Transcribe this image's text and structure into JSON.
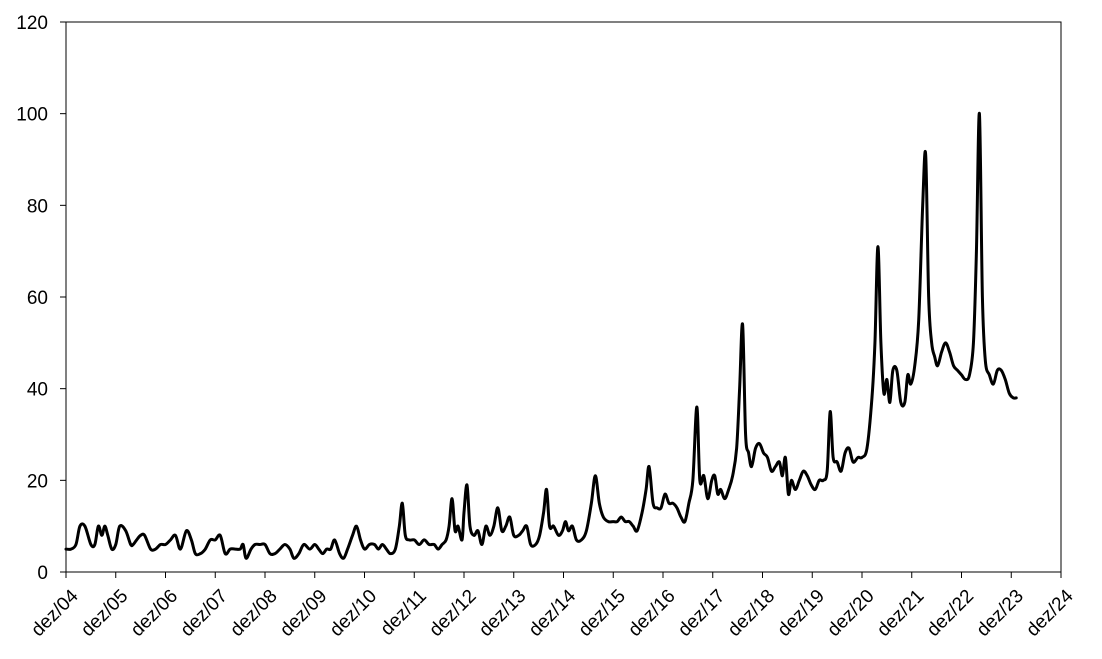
{
  "chart_data": {
    "type": "line",
    "title": "",
    "xlabel": "",
    "ylabel": "",
    "ylim": [
      0,
      120
    ],
    "y_ticks": [
      "0",
      "20",
      "40",
      "60",
      "80",
      "100",
      "120"
    ],
    "x_tick_labels": [
      "dez/04",
      "dez/05",
      "dez/06",
      "dez/07",
      "dez/08",
      "dez/09",
      "dez/10",
      "dez/11",
      "dez/12",
      "dez/13",
      "dez/14",
      "dez/15",
      "dez/16",
      "dez/17",
      "dez/18",
      "dez/19",
      "dez/20",
      "dez/21",
      "dez/22",
      "dez/23",
      "dez/24"
    ],
    "grid": false,
    "legend": "none",
    "line_color": "#000000",
    "series": [
      {
        "x_unit": "years after dez/04",
        "points": [
          [
            0.0,
            5
          ],
          [
            0.1,
            5
          ],
          [
            0.2,
            6
          ],
          [
            0.28,
            10
          ],
          [
            0.38,
            10
          ],
          [
            0.5,
            6
          ],
          [
            0.58,
            6
          ],
          [
            0.65,
            10
          ],
          [
            0.72,
            8
          ],
          [
            0.78,
            10
          ],
          [
            0.84,
            8
          ],
          [
            0.92,
            5
          ],
          [
            1.0,
            6
          ],
          [
            1.08,
            10
          ],
          [
            1.2,
            9
          ],
          [
            1.3,
            6
          ],
          [
            1.35,
            6
          ],
          [
            1.42,
            7
          ],
          [
            1.5,
            8
          ],
          [
            1.58,
            8
          ],
          [
            1.7,
            5
          ],
          [
            1.8,
            5
          ],
          [
            1.9,
            6
          ],
          [
            2.0,
            6
          ],
          [
            2.1,
            7
          ],
          [
            2.2,
            8
          ],
          [
            2.3,
            5
          ],
          [
            2.42,
            9
          ],
          [
            2.52,
            7
          ],
          [
            2.6,
            4
          ],
          [
            2.7,
            4
          ],
          [
            2.8,
            5
          ],
          [
            2.9,
            7
          ],
          [
            3.0,
            7
          ],
          [
            3.1,
            8
          ],
          [
            3.2,
            4
          ],
          [
            3.3,
            5
          ],
          [
            3.4,
            5
          ],
          [
            3.5,
            5
          ],
          [
            3.56,
            6
          ],
          [
            3.62,
            3
          ],
          [
            3.72,
            5
          ],
          [
            3.8,
            6
          ],
          [
            3.9,
            6
          ],
          [
            4.0,
            6
          ],
          [
            4.1,
            4
          ],
          [
            4.2,
            4
          ],
          [
            4.3,
            5
          ],
          [
            4.4,
            6
          ],
          [
            4.5,
            5
          ],
          [
            4.58,
            3
          ],
          [
            4.68,
            4
          ],
          [
            4.78,
            6
          ],
          [
            4.9,
            5
          ],
          [
            5.0,
            6
          ],
          [
            5.08,
            5
          ],
          [
            5.16,
            4
          ],
          [
            5.24,
            5
          ],
          [
            5.32,
            5
          ],
          [
            5.4,
            7
          ],
          [
            5.5,
            4
          ],
          [
            5.58,
            3
          ],
          [
            5.66,
            5
          ],
          [
            5.76,
            8
          ],
          [
            5.84,
            10
          ],
          [
            5.92,
            7
          ],
          [
            6.0,
            5
          ],
          [
            6.1,
            6
          ],
          [
            6.2,
            6
          ],
          [
            6.28,
            5
          ],
          [
            6.36,
            6
          ],
          [
            6.44,
            5
          ],
          [
            6.52,
            4
          ],
          [
            6.62,
            5
          ],
          [
            6.7,
            10
          ],
          [
            6.76,
            15
          ],
          [
            6.82,
            8
          ],
          [
            6.9,
            7
          ],
          [
            7.0,
            7
          ],
          [
            7.1,
            6
          ],
          [
            7.2,
            7
          ],
          [
            7.3,
            6
          ],
          [
            7.4,
            6
          ],
          [
            7.48,
            5
          ],
          [
            7.56,
            6
          ],
          [
            7.64,
            7
          ],
          [
            7.7,
            10
          ],
          [
            7.76,
            16
          ],
          [
            7.82,
            9
          ],
          [
            7.88,
            10
          ],
          [
            7.96,
            7
          ],
          [
            8.0,
            13
          ],
          [
            8.06,
            19
          ],
          [
            8.12,
            10
          ],
          [
            8.2,
            8
          ],
          [
            8.28,
            9
          ],
          [
            8.36,
            6
          ],
          [
            8.44,
            10
          ],
          [
            8.52,
            8
          ],
          [
            8.6,
            10
          ],
          [
            8.68,
            14
          ],
          [
            8.76,
            9
          ],
          [
            8.84,
            10
          ],
          [
            8.92,
            12
          ],
          [
            9.0,
            8
          ],
          [
            9.1,
            8
          ],
          [
            9.18,
            9
          ],
          [
            9.26,
            10
          ],
          [
            9.34,
            6
          ],
          [
            9.44,
            6
          ],
          [
            9.52,
            8
          ],
          [
            9.6,
            13
          ],
          [
            9.66,
            18
          ],
          [
            9.72,
            10
          ],
          [
            9.8,
            10
          ],
          [
            9.9,
            8
          ],
          [
            9.98,
            9
          ],
          [
            10.04,
            11
          ],
          [
            10.1,
            9
          ],
          [
            10.18,
            10
          ],
          [
            10.26,
            7
          ],
          [
            10.36,
            7
          ],
          [
            10.46,
            9
          ],
          [
            10.56,
            15
          ],
          [
            10.64,
            21
          ],
          [
            10.72,
            15
          ],
          [
            10.8,
            12
          ],
          [
            10.9,
            11
          ],
          [
            11.0,
            11
          ],
          [
            11.08,
            11
          ],
          [
            11.16,
            12
          ],
          [
            11.24,
            11
          ],
          [
            11.32,
            11
          ],
          [
            11.4,
            10
          ],
          [
            11.48,
            9
          ],
          [
            11.58,
            13
          ],
          [
            11.66,
            18
          ],
          [
            11.72,
            23
          ],
          [
            11.8,
            15
          ],
          [
            11.88,
            14
          ],
          [
            11.96,
            14
          ],
          [
            12.04,
            17
          ],
          [
            12.12,
            15
          ],
          [
            12.2,
            15
          ],
          [
            12.28,
            14
          ],
          [
            12.36,
            12
          ],
          [
            12.44,
            11
          ],
          [
            12.52,
            15
          ],
          [
            12.6,
            20
          ],
          [
            12.68,
            36
          ],
          [
            12.74,
            20
          ],
          [
            12.82,
            21
          ],
          [
            12.9,
            16
          ],
          [
            12.98,
            20
          ],
          [
            13.04,
            21
          ],
          [
            13.1,
            17
          ],
          [
            13.16,
            18
          ],
          [
            13.24,
            16
          ],
          [
            13.32,
            18
          ],
          [
            13.4,
            21
          ],
          [
            13.48,
            27
          ],
          [
            13.54,
            40
          ],
          [
            13.6,
            54
          ],
          [
            13.66,
            30
          ],
          [
            13.72,
            26
          ],
          [
            13.78,
            23
          ],
          [
            13.86,
            27
          ],
          [
            13.94,
            28
          ],
          [
            14.02,
            26
          ],
          [
            14.1,
            25
          ],
          [
            14.18,
            22
          ],
          [
            14.26,
            23
          ],
          [
            14.34,
            24
          ],
          [
            14.4,
            21
          ],
          [
            14.46,
            25
          ],
          [
            14.52,
            17
          ],
          [
            14.58,
            20
          ],
          [
            14.66,
            18
          ],
          [
            14.74,
            20
          ],
          [
            14.82,
            22
          ],
          [
            14.9,
            21
          ],
          [
            14.98,
            19
          ],
          [
            15.06,
            18
          ],
          [
            15.14,
            20
          ],
          [
            15.22,
            20
          ],
          [
            15.3,
            22
          ],
          [
            15.36,
            35
          ],
          [
            15.42,
            25
          ],
          [
            15.5,
            24
          ],
          [
            15.58,
            22
          ],
          [
            15.66,
            26
          ],
          [
            15.74,
            27
          ],
          [
            15.82,
            24
          ],
          [
            15.92,
            25
          ],
          [
            16.0,
            25
          ],
          [
            16.1,
            27
          ],
          [
            16.2,
            38
          ],
          [
            16.26,
            50
          ],
          [
            16.32,
            71
          ],
          [
            16.38,
            50
          ],
          [
            16.44,
            39
          ],
          [
            16.5,
            42
          ],
          [
            16.56,
            37
          ],
          [
            16.62,
            44
          ],
          [
            16.7,
            44
          ],
          [
            16.78,
            37
          ],
          [
            16.86,
            37
          ],
          [
            16.92,
            43
          ],
          [
            16.98,
            41
          ],
          [
            17.06,
            45
          ],
          [
            17.14,
            55
          ],
          [
            17.22,
            80
          ],
          [
            17.28,
            91
          ],
          [
            17.34,
            60
          ],
          [
            17.4,
            50
          ],
          [
            17.46,
            47
          ],
          [
            17.52,
            45
          ],
          [
            17.6,
            48
          ],
          [
            17.68,
            50
          ],
          [
            17.76,
            48
          ],
          [
            17.84,
            45
          ],
          [
            17.92,
            44
          ],
          [
            18.0,
            43
          ],
          [
            18.08,
            42
          ],
          [
            18.16,
            43
          ],
          [
            18.24,
            50
          ],
          [
            18.3,
            70
          ],
          [
            18.36,
            100
          ],
          [
            18.42,
            60
          ],
          [
            18.48,
            46
          ],
          [
            18.56,
            43
          ],
          [
            18.64,
            41
          ],
          [
            18.72,
            44
          ],
          [
            18.8,
            44
          ],
          [
            18.88,
            42
          ],
          [
            18.96,
            39
          ],
          [
            19.04,
            38
          ],
          [
            19.1,
            38
          ]
        ]
      }
    ]
  }
}
